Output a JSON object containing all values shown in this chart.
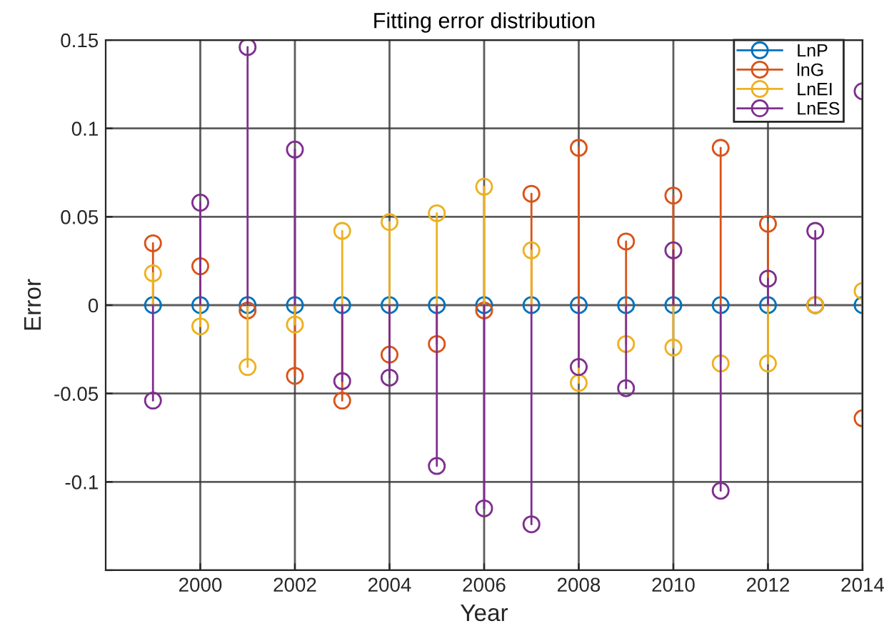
{
  "chart_data": {
    "type": "lollipop",
    "title": "Fitting error distribution",
    "xlabel": "Year",
    "ylabel": "Error",
    "x": [
      1999,
      2000,
      2001,
      2002,
      2003,
      2004,
      2005,
      2006,
      2007,
      2008,
      2009,
      2010,
      2011,
      2012,
      2013,
      2014
    ],
    "series": [
      {
        "name": "LnP",
        "color": "#0072bd",
        "values": [
          0,
          0,
          0,
          0,
          0,
          0,
          0,
          0,
          0,
          0,
          0,
          0,
          0,
          0,
          0,
          0
        ]
      },
      {
        "name": "lnG",
        "color": "#d95319",
        "values": [
          0.035,
          0.022,
          -0.003,
          -0.04,
          -0.054,
          -0.028,
          -0.022,
          -0.003,
          0.063,
          0.089,
          0.036,
          0.062,
          0.089,
          0.046,
          0,
          -0.064
        ]
      },
      {
        "name": "LnEI",
        "color": "#edb120",
        "values": [
          0.018,
          -0.012,
          -0.035,
          -0.011,
          0.042,
          0.047,
          0.052,
          0.067,
          0.031,
          -0.044,
          -0.022,
          -0.024,
          -0.033,
          -0.033,
          0,
          0.008
        ]
      },
      {
        "name": "LnES",
        "color": "#7e2f8e",
        "values": [
          -0.054,
          0.058,
          0.146,
          0.088,
          -0.043,
          -0.041,
          -0.091,
          -0.115,
          -0.124,
          -0.035,
          -0.047,
          0.031,
          -0.105,
          0.015,
          0.042,
          0.121
        ]
      }
    ],
    "xlim": [
      1998,
      2014
    ],
    "xticks": [
      2000,
      2002,
      2004,
      2006,
      2008,
      2010,
      2012,
      2014
    ],
    "ylim": [
      -0.15,
      0.15
    ],
    "yticks": [
      {
        "value": -0.15,
        "label": null
      },
      -0.1,
      -0.05,
      0,
      0.05,
      0.1,
      0.15
    ],
    "grid": true,
    "legend": "top right",
    "marker": "circle"
  }
}
